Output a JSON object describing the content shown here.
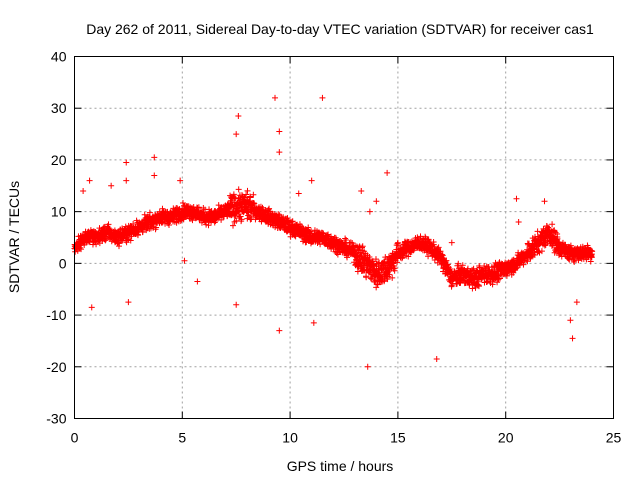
{
  "chart_data": {
    "type": "scatter",
    "title": "Day 262 of 2011, Sidereal Day-to-day VTEC variation (SDTVAR) for receiver cas1",
    "xlabel": "GPS time / hours",
    "ylabel": "SDTVAR / TECUs",
    "xlim": [
      0,
      25
    ],
    "ylim": [
      -30,
      40
    ],
    "xticks": [
      0,
      5,
      10,
      15,
      20,
      25
    ],
    "yticks": [
      -30,
      -20,
      -10,
      0,
      10,
      20,
      30,
      40
    ],
    "xtick_labels": [
      "0",
      "5",
      "10",
      "15",
      "20",
      "25"
    ],
    "ytick_labels": [
      "-30",
      "-20",
      "-10",
      "0",
      "10",
      "20",
      "30",
      "40"
    ],
    "grid": true,
    "marker": "+",
    "series": [
      {
        "name": "SDTVAR",
        "color": "#ff0000",
        "trend": [
          [
            0.0,
            3
          ],
          [
            0.5,
            5
          ],
          [
            1.0,
            5
          ],
          [
            1.5,
            6
          ],
          [
            2.0,
            5
          ],
          [
            2.5,
            6
          ],
          [
            3.0,
            7
          ],
          [
            3.5,
            8
          ],
          [
            4.0,
            9
          ],
          [
            4.5,
            9
          ],
          [
            5.0,
            10
          ],
          [
            5.5,
            10
          ],
          [
            6.0,
            9
          ],
          [
            6.5,
            9
          ],
          [
            7.0,
            10
          ],
          [
            7.5,
            11
          ],
          [
            8.0,
            11
          ],
          [
            8.5,
            10
          ],
          [
            9.0,
            9
          ],
          [
            9.5,
            8
          ],
          [
            10.0,
            7
          ],
          [
            10.5,
            6
          ],
          [
            11.0,
            5
          ],
          [
            11.5,
            5
          ],
          [
            12.0,
            4
          ],
          [
            12.5,
            3
          ],
          [
            13.0,
            2
          ],
          [
            13.5,
            0
          ],
          [
            14.0,
            -2
          ],
          [
            14.5,
            -1
          ],
          [
            15.0,
            2
          ],
          [
            15.5,
            3
          ],
          [
            16.0,
            4
          ],
          [
            16.5,
            3
          ],
          [
            17.0,
            1
          ],
          [
            17.5,
            -3
          ],
          [
            18.0,
            -2
          ],
          [
            18.5,
            -3
          ],
          [
            19.0,
            -2
          ],
          [
            19.5,
            -2
          ],
          [
            20.0,
            -1
          ],
          [
            20.5,
            0
          ],
          [
            21.0,
            2
          ],
          [
            21.5,
            4
          ],
          [
            22.0,
            6
          ],
          [
            22.5,
            3
          ],
          [
            23.0,
            2
          ],
          [
            23.5,
            2
          ],
          [
            24.0,
            2
          ]
        ],
        "outliers": [
          [
            0.4,
            14
          ],
          [
            0.7,
            16
          ],
          [
            0.8,
            -8.5
          ],
          [
            1.7,
            15
          ],
          [
            2.4,
            19.5
          ],
          [
            2.4,
            16
          ],
          [
            2.5,
            -7.5
          ],
          [
            3.7,
            20.5
          ],
          [
            3.7,
            17
          ],
          [
            4.9,
            16
          ],
          [
            5.1,
            0.5
          ],
          [
            5.7,
            -3.5
          ],
          [
            7.5,
            25
          ],
          [
            7.6,
            28.5
          ],
          [
            7.5,
            -8
          ],
          [
            9.3,
            32
          ],
          [
            9.5,
            25.5
          ],
          [
            9.5,
            21.5
          ],
          [
            9.5,
            -13
          ],
          [
            10.4,
            13.5
          ],
          [
            11.0,
            16
          ],
          [
            11.1,
            -11.5
          ],
          [
            11.5,
            32
          ],
          [
            13.3,
            14
          ],
          [
            13.6,
            -20
          ],
          [
            13.7,
            10
          ],
          [
            14.0,
            12
          ],
          [
            14.5,
            17.5
          ],
          [
            16.8,
            -18.5
          ],
          [
            17.5,
            4
          ],
          [
            20.5,
            12.5
          ],
          [
            20.6,
            8
          ],
          [
            21.8,
            12
          ],
          [
            23.0,
            -11
          ],
          [
            23.1,
            -14.5
          ],
          [
            23.3,
            -7.5
          ]
        ]
      }
    ]
  }
}
